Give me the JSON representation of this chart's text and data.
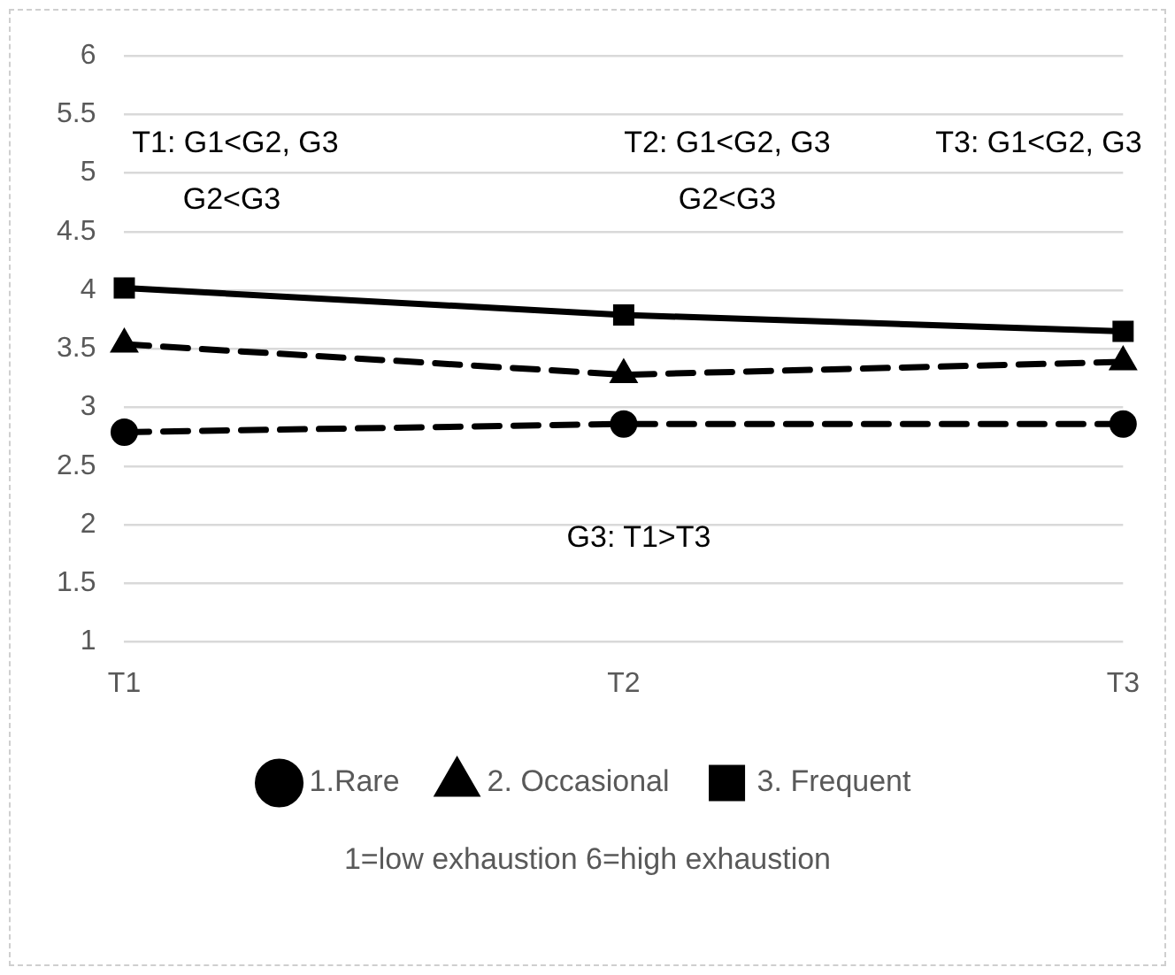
{
  "chart_data": {
    "type": "line",
    "categories": [
      "T1",
      "T2",
      "T3"
    ],
    "series": [
      {
        "name": "1.Rare",
        "color": "#000000",
        "values": [
          2.79,
          2.86,
          2.86
        ],
        "marker": "circle",
        "line_style": "dashed"
      },
      {
        "name": "2. Occasional",
        "color": "#000000",
        "values": [
          3.54,
          3.28,
          3.39
        ],
        "marker": "triangle",
        "line_style": "dashed"
      },
      {
        "name": "3. Frequent",
        "color": "#000000",
        "values": [
          4.02,
          3.79,
          3.65
        ],
        "marker": "square",
        "line_style": "solid"
      }
    ],
    "ylim": [
      1,
      6
    ],
    "yticks": [
      1,
      1.5,
      2,
      2.5,
      3,
      3.5,
      4,
      4.5,
      5,
      5.5,
      6
    ],
    "grid": "y",
    "legend": "bottom",
    "annotations": [
      "T1: G1<G2, G3",
      "G2<G3",
      "T2: G1<G2, G3",
      "G2<G3",
      "T3: G1<G2, G3",
      "G3: T1>T3",
      "1=low exhaustion 6=high exhaustion"
    ]
  }
}
